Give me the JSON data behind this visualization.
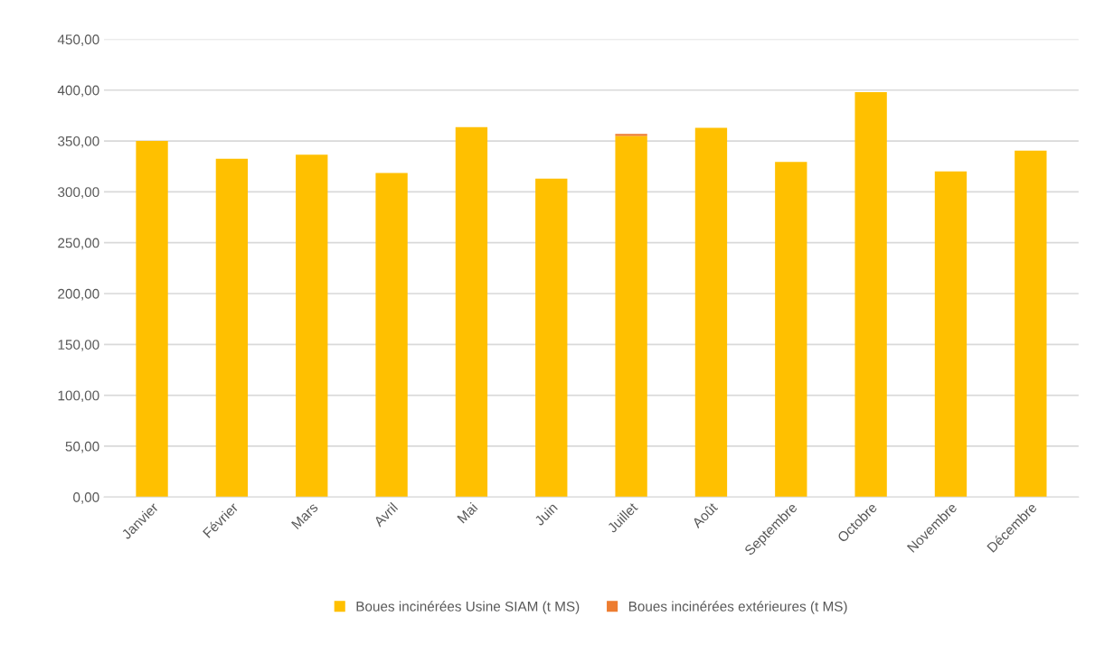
{
  "chart_data": {
    "type": "bar",
    "stacked": true,
    "categories": [
      "Janvier",
      "Février",
      "Mars",
      "Avril",
      "Mai",
      "Juin",
      "Juillet",
      "Août",
      "Septembre",
      "Octobre",
      "Novembre",
      "Décembre"
    ],
    "series": [
      {
        "name": "Boues incinérées Usine SIAM (t MS)",
        "color": "#ffc000",
        "values": [
          350,
          332.5,
          336.5,
          318.5,
          363.5,
          313,
          355,
          363,
          329.5,
          398,
          320,
          340.5
        ]
      },
      {
        "name": "Boues incinérées extérieures (t MS)",
        "color": "#ed7d31",
        "values": [
          0,
          0,
          0,
          0,
          0,
          0,
          2,
          0,
          0,
          0,
          0,
          0
        ]
      }
    ],
    "ylim": [
      0,
      450
    ],
    "yticks": [
      {
        "value": 0,
        "label": "0,00"
      },
      {
        "value": 50,
        "label": "50,00"
      },
      {
        "value": 100,
        "label": "100,00"
      },
      {
        "value": 150,
        "label": "150,00"
      },
      {
        "value": 200,
        "label": "200,00"
      },
      {
        "value": 250,
        "label": "250,00"
      },
      {
        "value": 300,
        "label": "300,00"
      },
      {
        "value": 350,
        "label": "350,00"
      },
      {
        "value": 400,
        "label": "400,00"
      },
      {
        "value": 450,
        "label": "450,00"
      }
    ],
    "grid": "y",
    "legend": "bottom"
  }
}
